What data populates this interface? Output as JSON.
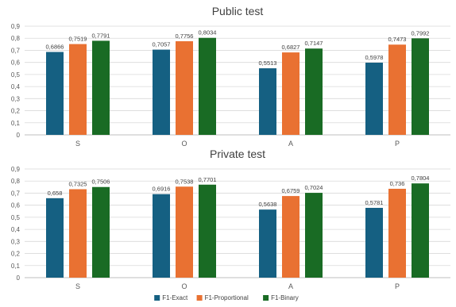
{
  "chart_data": [
    {
      "type": "bar",
      "title": "Public test",
      "categories": [
        "S",
        "O",
        "A",
        "P"
      ],
      "ylim": [
        0,
        0.9
      ],
      "yticks": [
        "0",
        "0,1",
        "0,2",
        "0,3",
        "0,4",
        "0,5",
        "0,6",
        "0,7",
        "0,8",
        "0,9"
      ],
      "grid": true,
      "series": [
        {
          "name": "F1-Exact",
          "color": "#156082",
          "values": [
            0.6866,
            0.7057,
            0.5513,
            0.5978
          ],
          "labels": [
            "0,6866",
            "0,7057",
            "0,5513",
            "0,5978"
          ]
        },
        {
          "name": "F1-Proportional",
          "color": "#E97132",
          "values": [
            0.7519,
            0.7756,
            0.6827,
            0.7473
          ],
          "labels": [
            "0,7519",
            "0,7756",
            "0,6827",
            "0,7473"
          ]
        },
        {
          "name": "F1-Binary",
          "color": "#196B24",
          "values": [
            0.7791,
            0.8034,
            0.7147,
            0.7992
          ],
          "labels": [
            "0,7791",
            "0,8034",
            "0,7147",
            "0,7992"
          ]
        }
      ]
    },
    {
      "type": "bar",
      "title": "Private test",
      "categories": [
        "S",
        "O",
        "A",
        "P"
      ],
      "ylim": [
        0,
        0.9
      ],
      "yticks": [
        "0",
        "0,1",
        "0,2",
        "0,3",
        "0,4",
        "0,5",
        "0,6",
        "0,7",
        "0,8",
        "0,9"
      ],
      "grid": true,
      "series": [
        {
          "name": "F1-Exact",
          "color": "#156082",
          "values": [
            0.658,
            0.6916,
            0.5638,
            0.5781
          ],
          "labels": [
            "0,658",
            "0,6916",
            "0,5638",
            "0,5781"
          ]
        },
        {
          "name": "F1-Proportional",
          "color": "#E97132",
          "values": [
            0.7325,
            0.7538,
            0.6759,
            0.736
          ],
          "labels": [
            "0,7325",
            "0,7538",
            "0,6759",
            "0,736"
          ]
        },
        {
          "name": "F1-Binary",
          "color": "#196B24",
          "values": [
            0.7506,
            0.7701,
            0.7024,
            0.7804
          ],
          "labels": [
            "0,7506",
            "0,7701",
            "0,7024",
            "0,7804"
          ]
        }
      ]
    }
  ],
  "legend": {
    "placement": "bottom",
    "items": [
      {
        "label": "F1-Exact",
        "color": "#156082"
      },
      {
        "label": "F1-Proportional",
        "color": "#E97132"
      },
      {
        "label": "F1-Binary",
        "color": "#196B24"
      }
    ]
  }
}
